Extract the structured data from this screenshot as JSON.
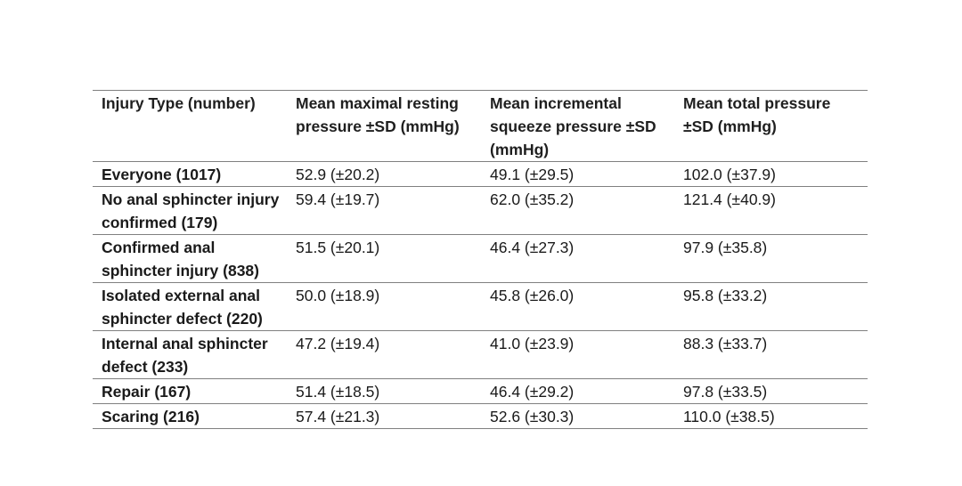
{
  "table": {
    "headers": [
      "Injury Type (number)",
      "Mean maximal resting pressure ±SD (mmHg)",
      "Mean incremental squeeze pressure ±SD (mmHg)",
      "Mean total pressure ±SD (mmHg)"
    ],
    "rows": [
      [
        "Everyone (1017)",
        "52.9 (±20.2)",
        "49.1 (±29.5)",
        "102.0 (±37.9)"
      ],
      [
        "No anal sphincter injury confirmed (179)",
        "59.4 (±19.7)",
        "62.0 (±35.2)",
        "121.4 (±40.9)"
      ],
      [
        "Confirmed anal sphincter injury (838)",
        "51.5 (±20.1)",
        "46.4 (±27.3)",
        "97.9 (±35.8)"
      ],
      [
        "Isolated external anal sphincter defect (220)",
        "50.0 (±18.9)",
        "45.8 (±26.0)",
        "95.8 (±33.2)"
      ],
      [
        "Internal anal sphincter defect (233)",
        "47.2 (±19.4)",
        "41.0 (±23.9)",
        "88.3 (±33.7)"
      ],
      [
        "Repair (167)",
        "51.4 (±18.5)",
        "46.4 (±29.2)",
        "97.8 (±33.5)"
      ],
      [
        "Scaring (216)",
        "57.4 (±21.3)",
        "52.6 (±30.3)",
        "110.0 (±38.5)"
      ]
    ]
  },
  "chart_data": {
    "type": "table",
    "columns": [
      "Injury Type (number)",
      "Mean maximal resting pressure ±SD (mmHg)",
      "Mean incremental squeeze pressure ±SD (mmHg)",
      "Mean total pressure ±SD (mmHg)"
    ],
    "rows": [
      {
        "injury_type": "Everyone",
        "n": 1017,
        "resting_mean": 52.9,
        "resting_sd": 20.2,
        "squeeze_mean": 49.1,
        "squeeze_sd": 29.5,
        "total_mean": 102.0,
        "total_sd": 37.9
      },
      {
        "injury_type": "No anal sphincter injury confirmed",
        "n": 179,
        "resting_mean": 59.4,
        "resting_sd": 19.7,
        "squeeze_mean": 62.0,
        "squeeze_sd": 35.2,
        "total_mean": 121.4,
        "total_sd": 40.9
      },
      {
        "injury_type": "Confirmed anal sphincter injury",
        "n": 838,
        "resting_mean": 51.5,
        "resting_sd": 20.1,
        "squeeze_mean": 46.4,
        "squeeze_sd": 27.3,
        "total_mean": 97.9,
        "total_sd": 35.8
      },
      {
        "injury_type": "Isolated external anal sphincter defect",
        "n": 220,
        "resting_mean": 50.0,
        "resting_sd": 18.9,
        "squeeze_mean": 45.8,
        "squeeze_sd": 26.0,
        "total_mean": 95.8,
        "total_sd": 33.2
      },
      {
        "injury_type": "Internal anal sphincter defect",
        "n": 233,
        "resting_mean": 47.2,
        "resting_sd": 19.4,
        "squeeze_mean": 41.0,
        "squeeze_sd": 23.9,
        "total_mean": 88.3,
        "total_sd": 33.7
      },
      {
        "injury_type": "Repair",
        "n": 167,
        "resting_mean": 51.4,
        "resting_sd": 18.5,
        "squeeze_mean": 46.4,
        "squeeze_sd": 29.2,
        "total_mean": 97.8,
        "total_sd": 33.5
      },
      {
        "injury_type": "Scaring",
        "n": 216,
        "resting_mean": 57.4,
        "resting_sd": 21.3,
        "squeeze_mean": 52.6,
        "squeeze_sd": 30.3,
        "total_mean": 110.0,
        "total_sd": 38.5
      }
    ]
  }
}
